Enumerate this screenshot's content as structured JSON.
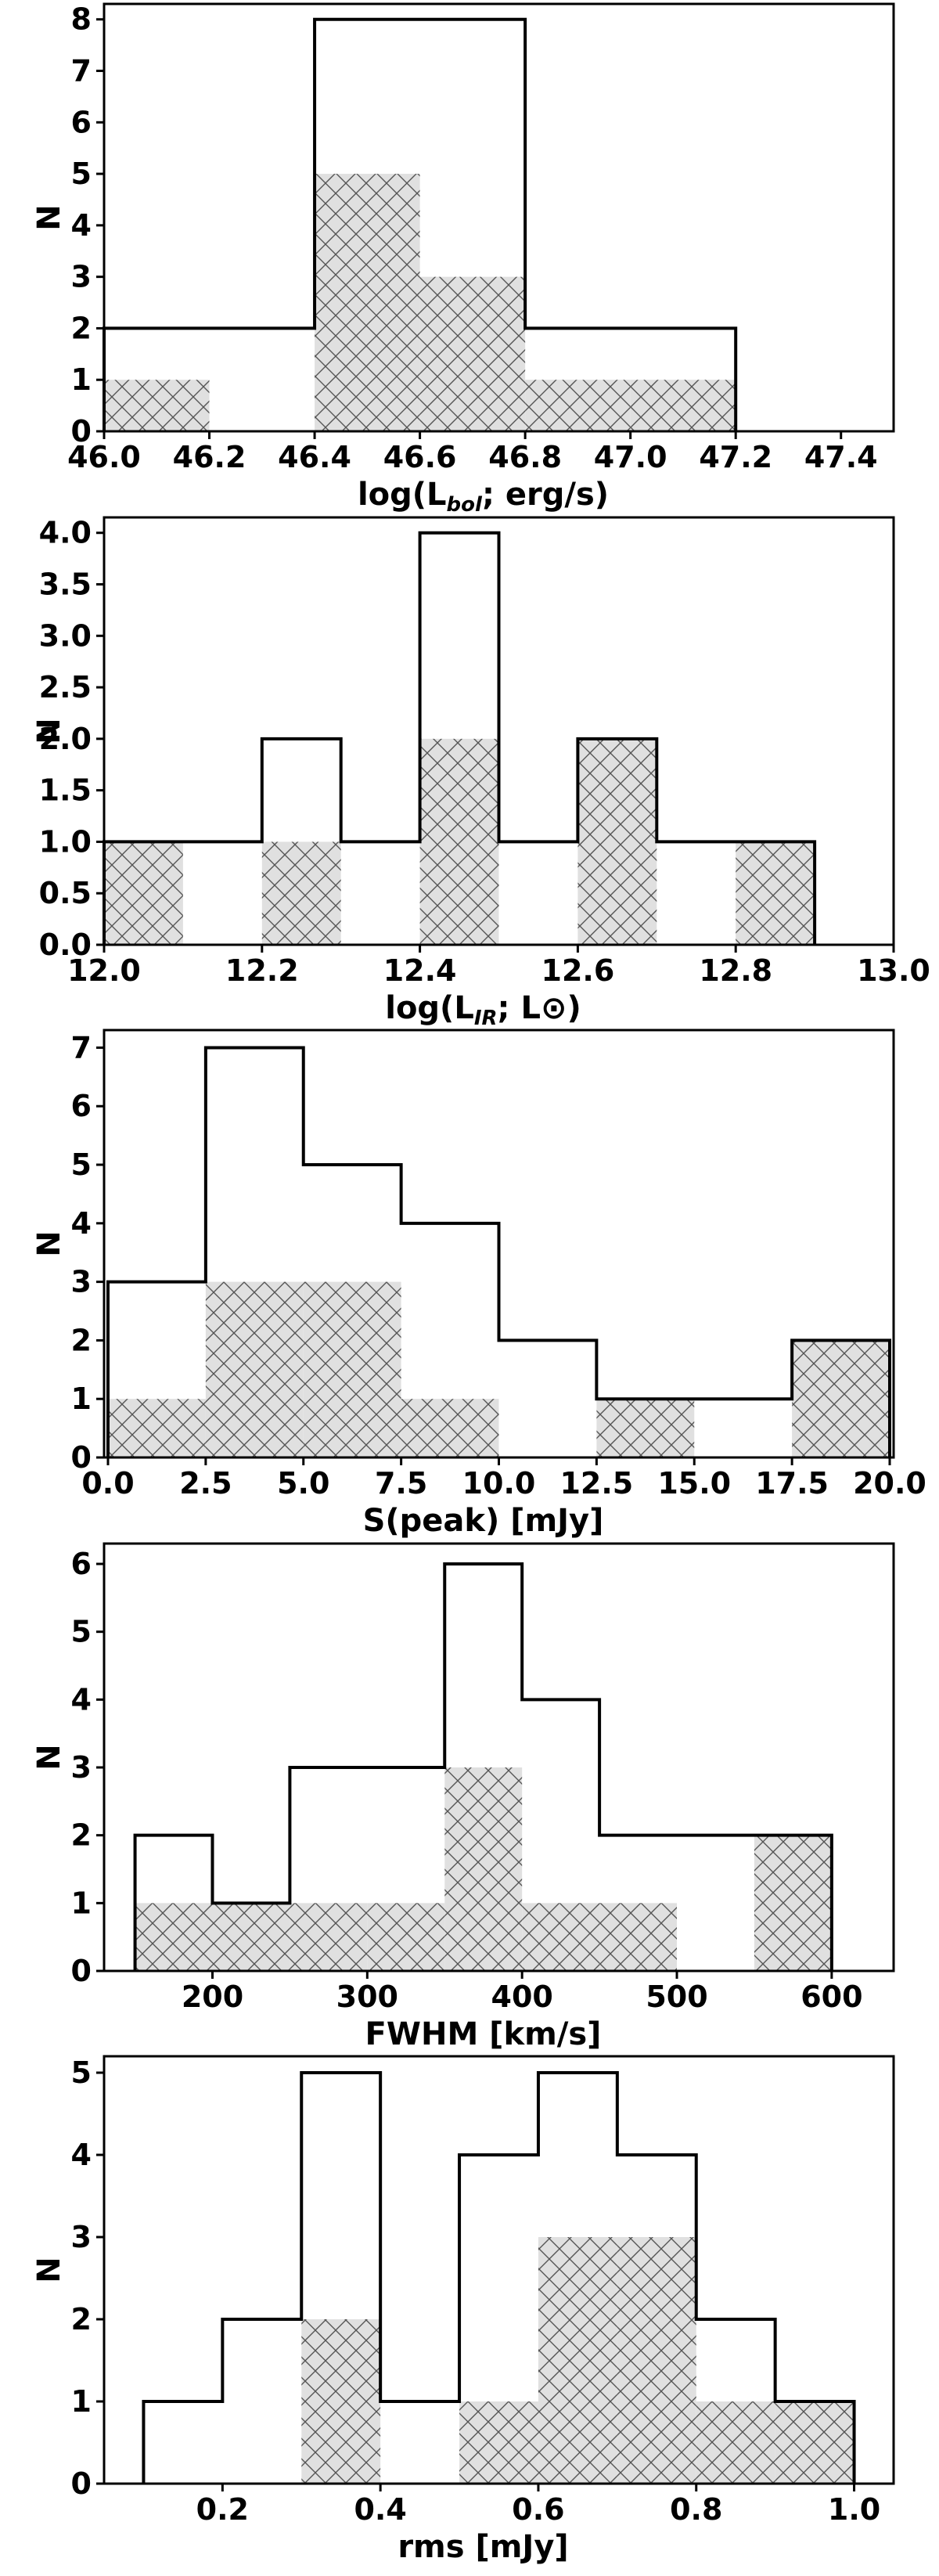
{
  "styles": {
    "hatch_fill": "#e0e0e0",
    "hatch_line": "#555555",
    "outline": "#000000"
  },
  "chart_data": [
    {
      "type": "bar",
      "xlabel": "log(L_bol; erg/s)",
      "xlabel_parts": [
        "log(L",
        "bol",
        "; erg/s)"
      ],
      "ylabel": "N",
      "xlim": [
        46.0,
        47.5
      ],
      "ylim": [
        0,
        8.3
      ],
      "xticks": [
        46.0,
        46.2,
        46.4,
        46.6,
        46.8,
        47.0,
        47.2,
        47.4
      ],
      "xtick_labels": [
        "46.0",
        "46.2",
        "46.4",
        "46.6",
        "46.8",
        "47.0",
        "47.2",
        "47.4"
      ],
      "yticks": [
        0,
        1,
        2,
        3,
        4,
        5,
        6,
        7,
        8
      ],
      "ytick_labels": [
        "0",
        "1",
        "2",
        "3",
        "4",
        "5",
        "6",
        "7",
        "8"
      ],
      "bin_edges": [
        46.0,
        46.4,
        46.8,
        47.2
      ],
      "series": [
        {
          "style": "outline",
          "bin_edges": [
            46.0,
            46.4,
            46.8,
            47.2
          ],
          "values": [
            2,
            8,
            2
          ]
        },
        {
          "style": "hatched",
          "bin_edges": [
            46.0,
            46.2,
            46.4,
            46.6,
            46.8,
            47.0,
            47.2
          ],
          "values": [
            1,
            0,
            5,
            3,
            1,
            1
          ]
        }
      ]
    },
    {
      "type": "bar",
      "xlabel": "log(L_IR; L_sun)",
      "xlabel_parts": [
        "log(L",
        "IR",
        "; L⊙)"
      ],
      "ylabel": "N",
      "xlim": [
        12.0,
        13.0
      ],
      "ylim": [
        0,
        4.15
      ],
      "xticks": [
        12.0,
        12.2,
        12.4,
        12.6,
        12.8,
        13.0
      ],
      "xtick_labels": [
        "12.0",
        "12.2",
        "12.4",
        "12.6",
        "12.8",
        "13.0"
      ],
      "yticks": [
        0,
        0.5,
        1,
        1.5,
        2,
        2.5,
        3,
        3.5,
        4
      ],
      "ytick_labels": [
        "0.0",
        "0.5",
        "1.0",
        "1.5",
        "2.0",
        "2.5",
        "3.0",
        "3.5",
        "4.0"
      ],
      "series": [
        {
          "style": "outline",
          "bin_edges": [
            12.0,
            12.1,
            12.2,
            12.3,
            12.4,
            12.5,
            12.6,
            12.7,
            12.8,
            12.9
          ],
          "values": [
            1,
            1,
            2,
            1,
            4,
            1,
            2,
            1,
            1
          ]
        },
        {
          "style": "hatched",
          "bin_edges": [
            12.0,
            12.1,
            12.2,
            12.3,
            12.4,
            12.5,
            12.6,
            12.7,
            12.8,
            12.9
          ],
          "values": [
            1,
            0,
            1,
            0,
            2,
            0,
            2,
            0,
            1
          ]
        }
      ]
    },
    {
      "type": "bar",
      "xlabel": "S(peak) [mJy]",
      "xlabel_parts": [
        "S(peak) [mJy]",
        "",
        ""
      ],
      "ylabel": "N",
      "xlim": [
        -0.1,
        20.1
      ],
      "ylim": [
        0,
        7.3
      ],
      "xticks": [
        0,
        2.5,
        5,
        7.5,
        10,
        12.5,
        15,
        17.5,
        20
      ],
      "xtick_labels": [
        "0.0",
        "2.5",
        "5.0",
        "7.5",
        "10.0",
        "12.5",
        "15.0",
        "17.5",
        "20.0"
      ],
      "yticks": [
        0,
        1,
        2,
        3,
        4,
        5,
        6,
        7
      ],
      "ytick_labels": [
        "0",
        "1",
        "2",
        "3",
        "4",
        "5",
        "6",
        "7"
      ],
      "series": [
        {
          "style": "outline",
          "bin_edges": [
            0,
            2.5,
            5,
            7.5,
            10,
            12.5,
            15,
            17.5,
            20
          ],
          "values": [
            3,
            7,
            5,
            4,
            2,
            1,
            1,
            2
          ]
        },
        {
          "style": "hatched",
          "bin_edges": [
            0,
            2.5,
            5,
            7.5,
            10,
            12.5,
            15,
            17.5,
            20
          ],
          "values": [
            1,
            3,
            3,
            1,
            0,
            1,
            0,
            2
          ]
        }
      ]
    },
    {
      "type": "bar",
      "xlabel": "FWHM [km/s]",
      "xlabel_parts": [
        "FWHM [km/s]",
        "",
        ""
      ],
      "ylabel": "N",
      "xlim": [
        130,
        640
      ],
      "ylim": [
        0,
        6.3
      ],
      "xticks": [
        200,
        300,
        400,
        500,
        600
      ],
      "xtick_labels": [
        "200",
        "300",
        "400",
        "500",
        "600"
      ],
      "yticks": [
        0,
        1,
        2,
        3,
        4,
        5,
        6
      ],
      "ytick_labels": [
        "0",
        "1",
        "2",
        "3",
        "4",
        "5",
        "6"
      ],
      "series": [
        {
          "style": "outline",
          "bin_edges": [
            150,
            200,
            250,
            300,
            350,
            400,
            450,
            500,
            550,
            600
          ],
          "values": [
            2,
            1,
            3,
            3,
            6,
            4,
            2,
            2,
            2
          ]
        },
        {
          "style": "hatched",
          "bin_edges": [
            150,
            200,
            250,
            300,
            350,
            400,
            450,
            500,
            550,
            600
          ],
          "values": [
            1,
            1,
            1,
            1,
            3,
            1,
            1,
            0,
            2
          ]
        }
      ]
    },
    {
      "type": "bar",
      "xlabel": "rms [mJy]",
      "xlabel_parts": [
        "rms [mJy]",
        "",
        ""
      ],
      "ylabel": "N",
      "xlim": [
        0.05,
        1.05
      ],
      "ylim": [
        0,
        5.2
      ],
      "xticks": [
        0.2,
        0.4,
        0.6,
        0.8,
        1.0
      ],
      "xtick_labels": [
        "0.2",
        "0.4",
        "0.6",
        "0.8",
        "1.0"
      ],
      "yticks": [
        0,
        1,
        2,
        3,
        4,
        5
      ],
      "ytick_labels": [
        "0",
        "1",
        "2",
        "3",
        "4",
        "5"
      ],
      "series": [
        {
          "style": "outline",
          "bin_edges": [
            0.1,
            0.2,
            0.3,
            0.4,
            0.5,
            0.6,
            0.7,
            0.8,
            0.9,
            1.0
          ],
          "values": [
            1,
            2,
            5,
            1,
            4,
            5,
            4,
            2,
            1
          ]
        },
        {
          "style": "hatched",
          "bin_edges": [
            0.1,
            0.2,
            0.3,
            0.4,
            0.5,
            0.6,
            0.7,
            0.8,
            0.9,
            1.0
          ],
          "values": [
            0,
            0,
            2,
            0,
            1,
            3,
            3,
            1,
            1
          ]
        }
      ]
    }
  ]
}
